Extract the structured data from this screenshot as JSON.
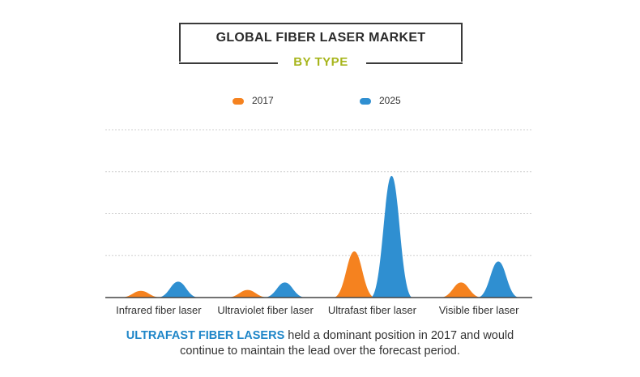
{
  "title": "GLOBAL FIBER LASER MARKET",
  "subtitle": "BY TYPE",
  "legend": [
    {
      "label": "2017",
      "color": "#f5821f"
    },
    {
      "label": "2025",
      "color": "#2f8fd1"
    }
  ],
  "caption": {
    "highlight": "ULTRAFAST FIBER LASERS",
    "line1_rest": " held a dominant position in 2017 and would",
    "line2": "continue to maintain the lead over the forecast period."
  },
  "chart_data": {
    "type": "area",
    "title": "GLOBAL FIBER LASER MARKET",
    "subtitle": "BY TYPE",
    "categories": [
      "Infrared fiber laser",
      "Ultraviolet fiber laser",
      "Ultrafast fiber laser",
      "Visible fiber laser"
    ],
    "series": [
      {
        "name": "2017",
        "color": "#f5821f",
        "values": [
          0.16,
          0.18,
          1.1,
          0.36
        ]
      },
      {
        "name": "2025",
        "color": "#2f8fd1",
        "values": [
          0.38,
          0.36,
          2.9,
          0.86
        ]
      }
    ],
    "ylim": [
      0,
      4
    ],
    "grid": true,
    "legend_position": "top"
  }
}
